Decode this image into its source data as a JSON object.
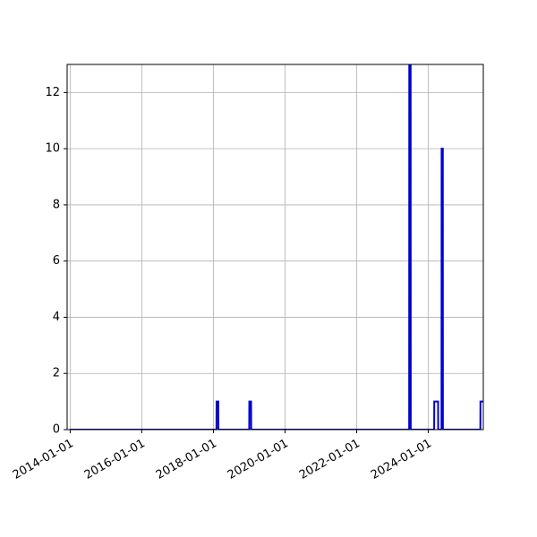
{
  "chart_data": {
    "type": "line",
    "title": "",
    "xlabel": "",
    "ylabel": "",
    "x_axis_type": "date",
    "xlim": [
      "2013-12-01",
      "2025-07-15"
    ],
    "ylim": [
      0,
      13
    ],
    "grid": true,
    "legend": "none",
    "x_ticks": [
      "2014-01-01",
      "2016-01-01",
      "2018-01-01",
      "2020-01-01",
      "2022-01-01",
      "2024-01-01"
    ],
    "y_ticks": [
      0,
      2,
      4,
      6,
      8,
      10,
      12
    ],
    "series": [
      {
        "color": "#0000cc",
        "points": [
          {
            "x": "2014-01-01",
            "y": 0
          },
          {
            "x": "2018-02-01",
            "y": 0
          },
          {
            "x": "2018-02-02",
            "y": 1
          },
          {
            "x": "2018-02-20",
            "y": 1
          },
          {
            "x": "2018-02-21",
            "y": 0
          },
          {
            "x": "2019-01-01",
            "y": 0
          },
          {
            "x": "2019-01-02",
            "y": 1
          },
          {
            "x": "2019-01-20",
            "y": 1
          },
          {
            "x": "2019-01-21",
            "y": 0
          },
          {
            "x": "2023-06-20",
            "y": 0
          },
          {
            "x": "2023-06-21",
            "y": 13
          },
          {
            "x": "2023-07-05",
            "y": 13
          },
          {
            "x": "2023-07-06",
            "y": 0
          },
          {
            "x": "2024-03-01",
            "y": 0
          },
          {
            "x": "2024-03-02",
            "y": 1
          },
          {
            "x": "2024-04-10",
            "y": 1
          },
          {
            "x": "2024-04-11",
            "y": 0
          },
          {
            "x": "2024-05-15",
            "y": 0
          },
          {
            "x": "2024-05-16",
            "y": 10
          },
          {
            "x": "2024-05-28",
            "y": 10
          },
          {
            "x": "2024-05-29",
            "y": 0
          },
          {
            "x": "2025-06-15",
            "y": 0
          },
          {
            "x": "2025-06-16",
            "y": 1
          },
          {
            "x": "2025-07-15",
            "y": 1
          }
        ]
      }
    ]
  }
}
